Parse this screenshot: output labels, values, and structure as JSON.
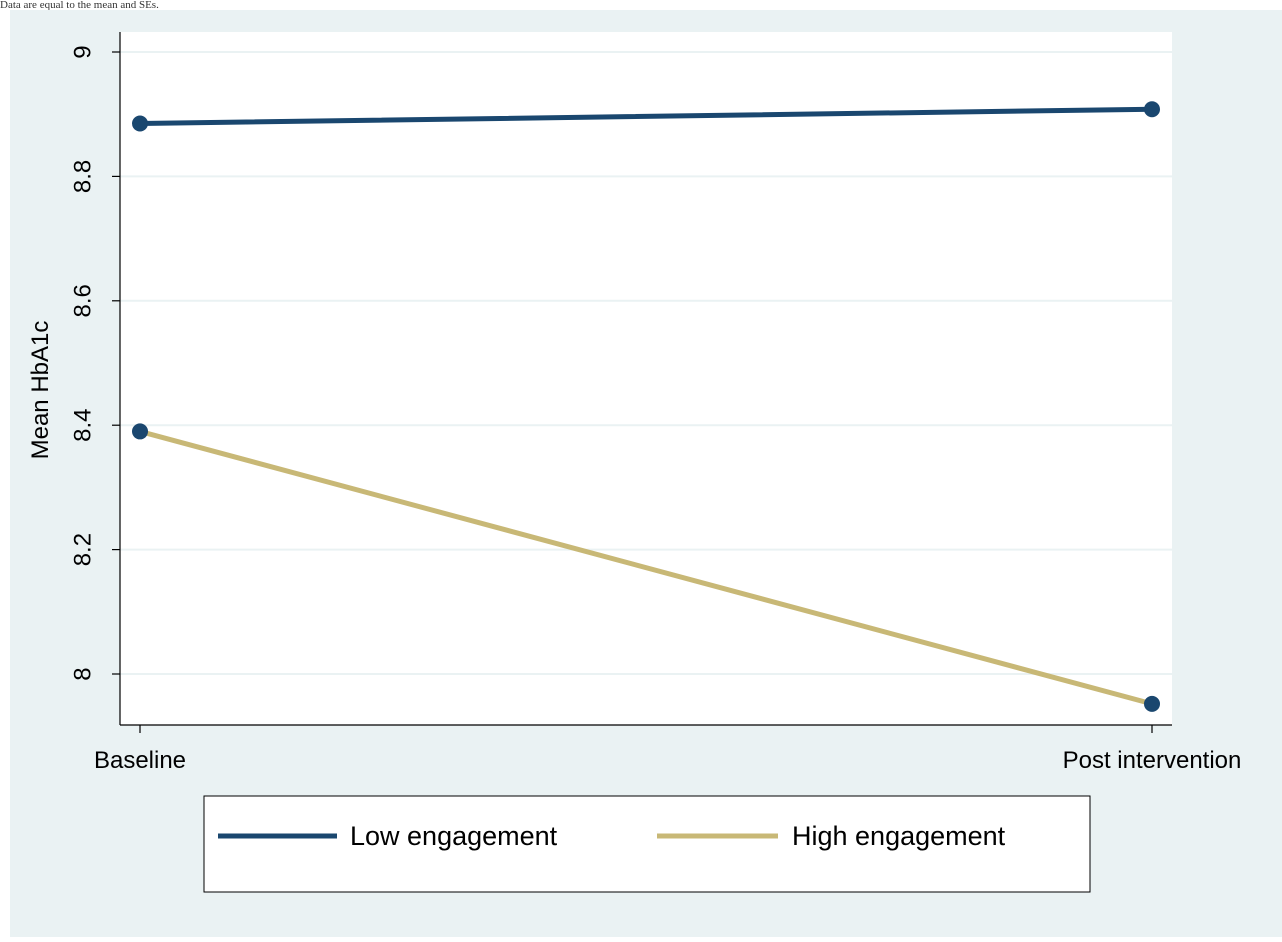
{
  "caption_fragment": "Data are equal to the mean and SEs.",
  "chart_data": {
    "type": "line",
    "title": "",
    "xlabel": "",
    "ylabel": "Mean HbA1c",
    "categories": [
      "Baseline",
      "Post intervention"
    ],
    "yticks": [
      8,
      8.2,
      8.4,
      8.6,
      8.8,
      9
    ],
    "ytick_labels": [
      "8",
      "8.2",
      "8.4",
      "8.6",
      "8.8",
      "9"
    ],
    "ylim": [
      7.955,
      9.03
    ],
    "grid": true,
    "legend_position": "bottom",
    "series": [
      {
        "name": "Low engagement",
        "values": [
          8.885,
          8.908
        ],
        "color": "#1a476f"
      },
      {
        "name": "High engagement",
        "values": [
          8.39,
          7.952
        ],
        "color": "#c8b876"
      }
    ],
    "colors": {
      "background": "#eaf2f3",
      "plot_background": "#ffffff",
      "grid": "#eaf2f3",
      "marker": "#1a476f",
      "axis": "#000000"
    }
  }
}
